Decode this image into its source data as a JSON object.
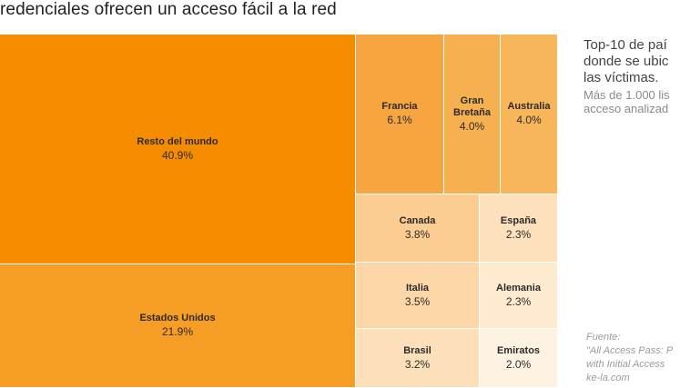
{
  "title": "redenciales ofrecen un acceso fácil a la red",
  "chart_data": {
    "type": "treemap",
    "title": "",
    "unit": "%",
    "items": [
      {
        "name": "Resto del mundo",
        "value": 40.9,
        "label": "40.9%",
        "color": "#f58c00"
      },
      {
        "name": "Estados Unidos",
        "value": 21.9,
        "label": "21.9%",
        "color": "#f59d25"
      },
      {
        "name": "Francia",
        "value": 6.1,
        "label": "6.1%",
        "color": "#f6a540"
      },
      {
        "name": "Gran\nBretaña",
        "value": 4.0,
        "label": "4.0%",
        "color": "#f7b050"
      },
      {
        "name": "Australia",
        "value": 4.0,
        "label": "4.0%",
        "color": "#f8b65a"
      },
      {
        "name": "Canada",
        "value": 3.8,
        "label": "3.8%",
        "color": "#fbcd92"
      },
      {
        "name": "España",
        "value": 2.3,
        "label": "2.3%",
        "color": "#fde1bd"
      },
      {
        "name": "Italia",
        "value": 3.5,
        "label": "3.5%",
        "color": "#fcd6a6"
      },
      {
        "name": "Alemania",
        "value": 2.3,
        "label": "2.3%",
        "color": "#feeacf"
      },
      {
        "name": "Brasil",
        "value": 3.2,
        "label": "3.2%",
        "color": "#fde0ba"
      },
      {
        "name": "Emiratos",
        "value": 2.0,
        "label": "2.0%",
        "color": "#fef3e3"
      }
    ]
  },
  "side_text": {
    "heading_lines": [
      "Top-10 de paí",
      "donde se ubic",
      "las víctimas."
    ],
    "sub_lines": [
      "Más de 1.000 lis",
      "acceso analizad"
    ]
  },
  "source": {
    "lines": [
      "Fuente:",
      "\"All Access Pass: P",
      "with Initial Access",
      "ke-la.com"
    ]
  }
}
